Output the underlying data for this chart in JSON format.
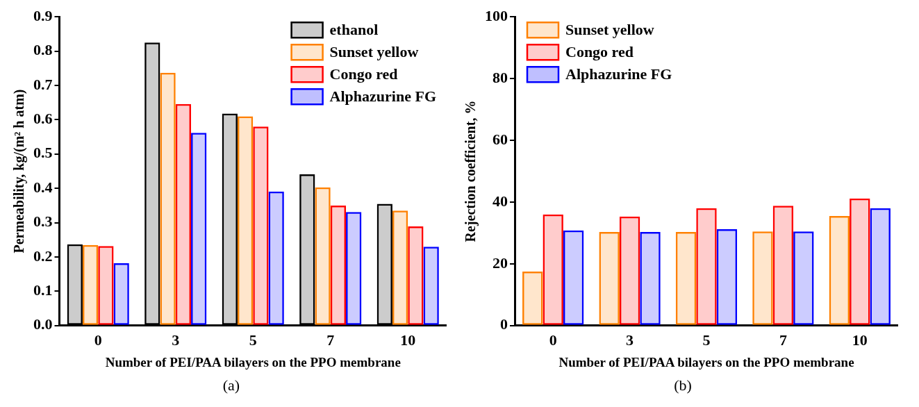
{
  "chart_data": [
    {
      "type": "bar",
      "categories": [
        "0",
        "3",
        "5",
        "7",
        "10"
      ],
      "xlabel": "Number of PEI/PAA bilayers on the PPO membrane",
      "ylabel": "Permeability, kg/(m² h atm)",
      "ylim": [
        0,
        0.9
      ],
      "yticks": [
        {
          "value": 0,
          "label": "0.0"
        },
        0.1,
        0.2,
        0.3,
        0.4,
        0.5,
        0.6,
        0.7,
        0.8,
        0.9
      ],
      "grid": false,
      "legend": "top right",
      "annotations": [
        "(a)"
      ],
      "series": [
        {
          "name": "ethanol",
          "color": "#000000",
          "values": [
            0.237,
            0.825,
            0.618,
            0.441,
            0.355
          ]
        },
        {
          "name": "Sunset yellow",
          "color": "#ff8000",
          "values": [
            0.235,
            0.737,
            0.61,
            0.403,
            0.335
          ]
        },
        {
          "name": "Congo red",
          "color": "#ff0000",
          "values": [
            0.232,
            0.646,
            0.58,
            0.35,
            0.289
          ]
        },
        {
          "name": "Alphazurine FG",
          "color": "#0000ff",
          "values": [
            0.182,
            0.562,
            0.391,
            0.331,
            0.23
          ]
        }
      ]
    },
    {
      "type": "bar",
      "categories": [
        "0",
        "3",
        "5",
        "7",
        "10"
      ],
      "xlabel": "Number of PEI/PAA bilayers on the PPO membrane",
      "ylabel": "Rejection coefficient, %",
      "ylim": [
        0,
        100
      ],
      "yticks": [
        0,
        20,
        40,
        60,
        80,
        100
      ],
      "grid": false,
      "legend": "top left",
      "annotations": [
        "(b)"
      ],
      "series": [
        {
          "name": "Sunset yellow",
          "color": "#ff8000",
          "values": [
            17.5,
            30.3,
            30.3,
            30.5,
            35.5
          ]
        },
        {
          "name": "Congo red",
          "color": "#ff0000",
          "values": [
            36.0,
            35.3,
            38.0,
            38.8,
            41.2
          ]
        },
        {
          "name": "Alphazurine FG",
          "color": "#0000ff",
          "values": [
            30.8,
            30.3,
            31.2,
            30.5,
            38.0
          ]
        }
      ]
    }
  ]
}
